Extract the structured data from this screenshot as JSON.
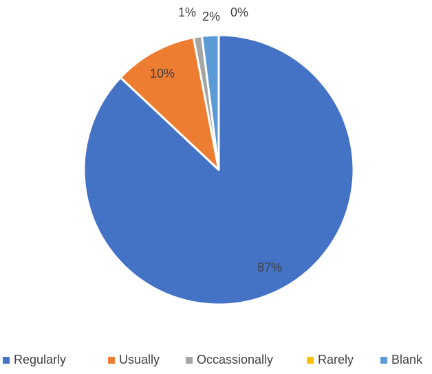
{
  "chart_data": {
    "type": "pie",
    "categories": [
      "Regularly",
      "Usually",
      "Occassionally",
      "Rarely",
      "Blank"
    ],
    "values": [
      87,
      10,
      1,
      0,
      2
    ],
    "data_labels": [
      "87%",
      "10%",
      "1%",
      "0%",
      "2%"
    ],
    "colors": [
      "#4472C4",
      "#ED7D31",
      "#A5A5A5",
      "#FFC000",
      "#5B9BD5"
    ],
    "start_angle": "12 o'clock",
    "direction": "clockwise",
    "slice_border": "#FFFFFF",
    "legend": {
      "position": "bottom",
      "entries": [
        "Regularly",
        "Usually",
        "Occassionally",
        "Rarely",
        "Blank"
      ]
    }
  }
}
